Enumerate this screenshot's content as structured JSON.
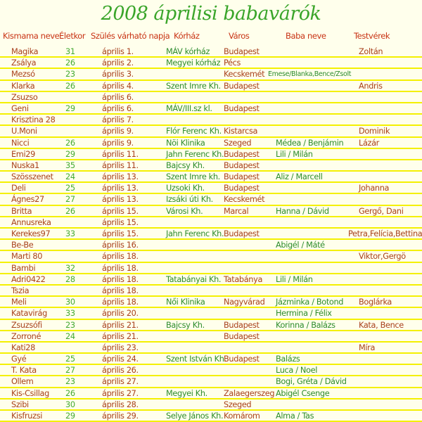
{
  "title": "2008 áprilisi babavárók",
  "headers": [
    "Kismama neve",
    "Életkor",
    "Szülés várható napja",
    "Kórház",
    "Város",
    "Baba neve",
    "Testvérek"
  ],
  "colors": {
    "background": "#ffffec",
    "header": "#c83214",
    "brown_text": "#a8401c",
    "green_text": "#2d8c2d",
    "row_line": "#f4f000",
    "title": "#3aa52a"
  },
  "rows": [
    [
      "Magika",
      "31",
      "április 1.",
      "MÁV kórház",
      "Budapest",
      "",
      "Zoltán"
    ],
    [
      "Zsálya",
      "26",
      "április 2.",
      "Megyei kórház",
      "Pécs",
      "",
      ""
    ],
    [
      "Mezsó",
      "23",
      "április 3.",
      "",
      "Kecskemét",
      "Emese/Blanka,Bence/Zsolt",
      ""
    ],
    [
      "Klarka",
      "26",
      "április 4.",
      "Szent Imre Kh.",
      "Budapest",
      "",
      "Andris"
    ],
    [
      "Zsuzso",
      "",
      "április 6.",
      "",
      "",
      "",
      ""
    ],
    [
      "Geni",
      "29",
      "április 6.",
      "MÁV/III.sz kl.",
      "Budapest",
      "",
      ""
    ],
    [
      "Krisztina 28",
      "",
      "április 7.",
      "",
      "",
      "",
      ""
    ],
    [
      "U.Moni",
      "",
      "április 9.",
      "Flór Ferenc Kh.",
      "Kistarcsa",
      "",
      "Dominik"
    ],
    [
      "Nicci",
      "26",
      "április 9.",
      "Nöi Klinika",
      "Szeged",
      "Médea / Benjámin",
      "Lázár"
    ],
    [
      "Emi29",
      "29",
      "április 11.",
      "Jahn Ferenc Kh.",
      "Budapest",
      "Lili / Milán",
      ""
    ],
    [
      "Nuska1",
      "35",
      "április 11.",
      "Bajcsy Kh.",
      "Budapest",
      "",
      ""
    ],
    [
      "Szösszenet",
      "24",
      "április 13.",
      "Szent Imre kh.",
      "Budapest",
      "Aliz / Marcell",
      ""
    ],
    [
      "Deli",
      "25",
      "április 13.",
      "Uzsoki Kh.",
      "Budapest",
      "",
      "Johanna"
    ],
    [
      "Ágnes27",
      "27",
      "április 13.",
      "Izsáki úti Kh.",
      "Kecskemét",
      "",
      ""
    ],
    [
      "Britta",
      "26",
      "április 15.",
      "Városi Kh.",
      "Marcal",
      "Hanna / Dávid",
      "Gergő, Dani"
    ],
    [
      "Annusreka",
      "",
      "április 15.",
      "",
      "",
      "",
      ""
    ],
    [
      "Kerekes97",
      "33",
      "április 15.",
      "Jahn Ferenc Kh.",
      "Budapest",
      "",
      "Petra,Felícia,Bettina"
    ],
    [
      "Be-Be",
      "",
      "április 16.",
      "",
      "",
      "Abigél / Máté",
      ""
    ],
    [
      "Marti 80",
      "",
      "április 18.",
      "",
      "",
      "",
      "Viktor,Gergö"
    ],
    [
      "Bambi",
      "32",
      "április 18.",
      "",
      "",
      "",
      ""
    ],
    [
      "Adri0422",
      "28",
      "április 18.",
      "Tatabányai Kh.",
      "Tatabánya",
      "Lili / Milán",
      ""
    ],
    [
      "Tszia",
      "",
      "április 18.",
      "",
      "",
      "",
      ""
    ],
    [
      "Meli",
      "30",
      "április 18.",
      "Női Klinika",
      "Nagyvárad",
      "Jázminka / Botond",
      "Boglárka"
    ],
    [
      "Katavirág",
      "33",
      "április 20.",
      "",
      "",
      "Hermina / Félix",
      ""
    ],
    [
      "Zsuzsófi",
      "23",
      "április 21.",
      "Bajcsy Kh.",
      "Budapest",
      "Korinna / Balázs",
      "Kata, Bence"
    ],
    [
      "Zorroné",
      "24",
      "április 21.",
      "",
      "Budapest",
      "",
      ""
    ],
    [
      "Kati28",
      "",
      "április 23.",
      "",
      "",
      "",
      "Míra"
    ],
    [
      "Gyé",
      "25",
      "április 24.",
      "Szent István Kh.",
      "Budapest",
      "Balázs",
      ""
    ],
    [
      "T. Kata",
      "27",
      "április 26.",
      "",
      "",
      "Luca / Noel",
      ""
    ],
    [
      "Ollem",
      "23",
      "április 27.",
      "",
      "",
      "Bogi, Gréta / Dávid",
      ""
    ],
    [
      "Kis-Csillag",
      "26",
      "április 27.",
      "Megyei Kh.",
      "Zalaegerszeg",
      "Abigél Csenge",
      ""
    ],
    [
      "Szibi",
      "30",
      "április 28.",
      "",
      "Szeged",
      "",
      ""
    ],
    [
      "Kisfruzsi",
      "29",
      "április 29.",
      "Selye János Kh.",
      "Komárom",
      "Alma / Tas",
      ""
    ]
  ]
}
